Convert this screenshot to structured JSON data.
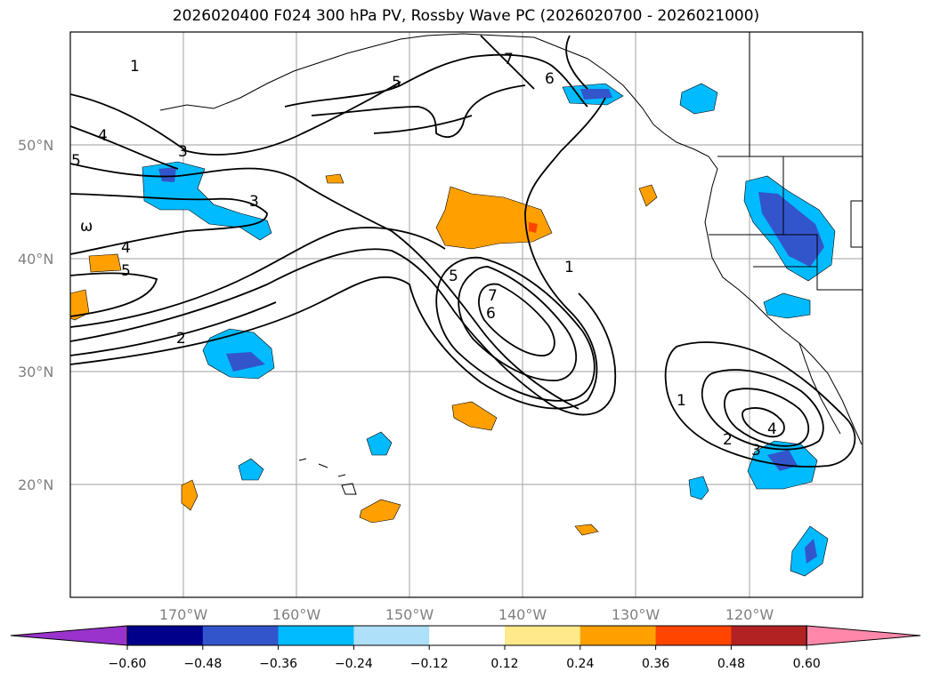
{
  "title": "2026020400 F024 300 hPa PV, Rossby Wave PC (2026020700 - 2026021000)",
  "map": {
    "lat_labels": [
      "50°N",
      "40°N",
      "30°N",
      "20°N"
    ],
    "lon_labels": [
      "170°W",
      "160°W",
      "150°W",
      "140°W",
      "130°W",
      "120°W"
    ],
    "contour_labels": [
      "1",
      "5",
      "7",
      "6",
      "4",
      "5",
      "3",
      "3",
      "ω",
      "4",
      "5",
      "2",
      "5",
      "7",
      "6",
      "1",
      "1",
      "2",
      "3",
      "4"
    ]
  },
  "colorbar": {
    "ticks": [
      "−0.60",
      "−0.48",
      "−0.36",
      "−0.24",
      "−0.12",
      "0.12",
      "0.24",
      "0.36",
      "0.48",
      "0.60"
    ],
    "colors": [
      "#9933cc",
      "#00008b",
      "#3355cc",
      "#00bbff",
      "#aee0fa",
      "#ffffff",
      "#ffe98a",
      "#ffa000",
      "#ff4500",
      "#b22222",
      "#ff88aa"
    ]
  }
}
